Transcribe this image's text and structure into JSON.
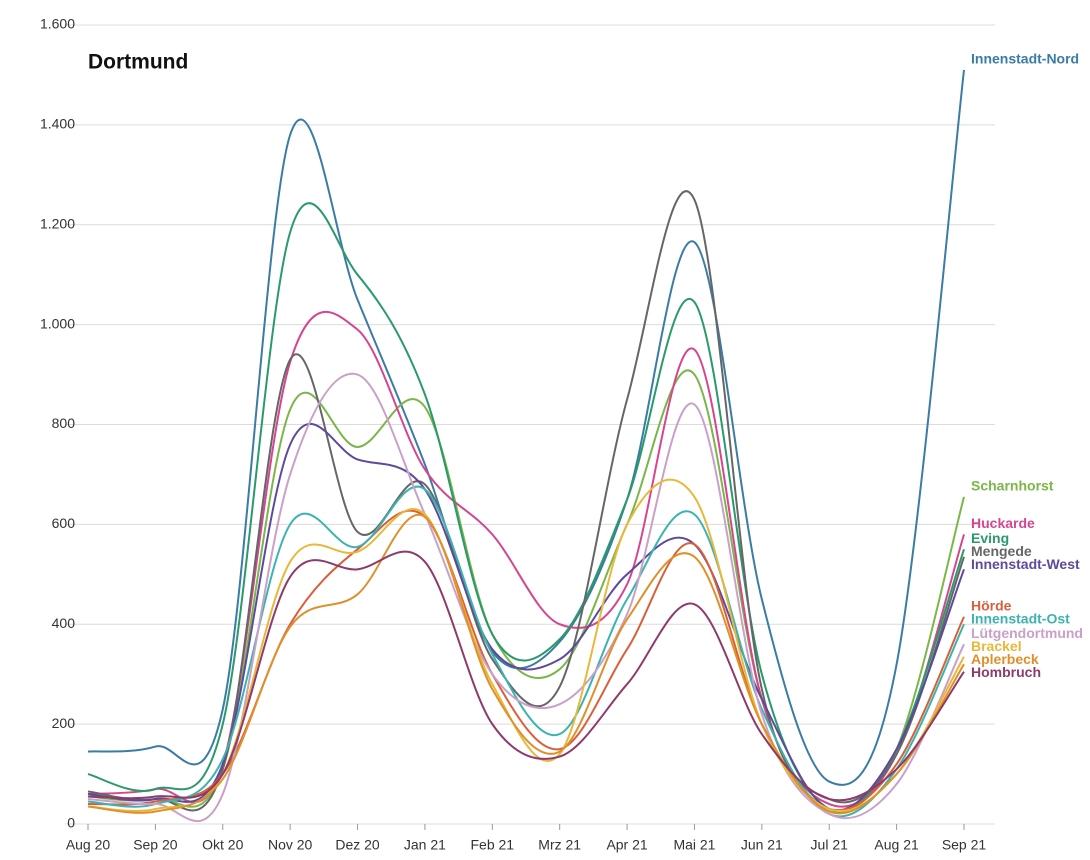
{
  "chart_data": {
    "type": "line",
    "title": "Dortmund",
    "categories": [
      "Aug 20",
      "Sep 20",
      "Okt 20",
      "Nov 20",
      "Dez 20",
      "Jan 21",
      "Feb 21",
      "Mrz 21",
      "Apr 21",
      "Mai 21",
      "Jun 21",
      "Jul 21",
      "Aug 21",
      "Sep 21"
    ],
    "ylim": [
      0,
      1600
    ],
    "yticks": [
      0,
      200,
      400,
      600,
      800,
      {
        "value": 1000,
        "label": "1.000"
      },
      {
        "value": 1200,
        "label": "1.200"
      },
      {
        "value": 1400,
        "label": "1.400"
      },
      {
        "value": 1600,
        "label": "1.600"
      }
    ],
    "grid": true,
    "series": [
      {
        "name": "Innenstadt-Nord",
        "color": "#3a7ca5",
        "values": [
          145,
          155,
          230,
          1380,
          1050,
          720,
          345,
          365,
          650,
          1165,
          450,
          85,
          320,
          1510
        ]
      },
      {
        "name": "Scharnhorst",
        "color": "#7ab648",
        "values": [
          55,
          50,
          110,
          830,
          755,
          835,
          380,
          310,
          600,
          900,
          250,
          30,
          150,
          655
        ]
      },
      {
        "name": "Huckarde",
        "color": "#d6458f",
        "values": [
          60,
          70,
          120,
          925,
          990,
          710,
          580,
          400,
          480,
          950,
          250,
          40,
          140,
          580
        ]
      },
      {
        "name": "Eving",
        "color": "#2a9a6b",
        "values": [
          100,
          70,
          200,
          1185,
          1100,
          860,
          380,
          370,
          650,
          1045,
          300,
          30,
          150,
          550
        ]
      },
      {
        "name": "Mengede",
        "color": "#666666",
        "values": [
          65,
          50,
          110,
          930,
          585,
          680,
          330,
          275,
          850,
          1250,
          270,
          50,
          140,
          535
        ]
      },
      {
        "name": "Innenstadt-West",
        "color": "#5e4a9c",
        "values": [
          60,
          50,
          120,
          760,
          730,
          670,
          350,
          330,
          500,
          560,
          250,
          30,
          150,
          510
        ]
      },
      {
        "name": "Hörde",
        "color": "#d95f3b",
        "values": [
          40,
          45,
          100,
          400,
          550,
          615,
          300,
          150,
          350,
          560,
          200,
          30,
          120,
          415
        ]
      },
      {
        "name": "Innenstadt-Ost",
        "color": "#3bb3b0",
        "values": [
          45,
          40,
          130,
          600,
          555,
          670,
          340,
          180,
          450,
          620,
          230,
          20,
          110,
          400
        ]
      },
      {
        "name": "Lütgendortmund",
        "color": "#c9a0c8",
        "values": [
          50,
          40,
          60,
          700,
          900,
          620,
          300,
          240,
          420,
          840,
          220,
          20,
          80,
          360
        ]
      },
      {
        "name": "Brackel",
        "color": "#e8b83a",
        "values": [
          35,
          30,
          100,
          525,
          545,
          620,
          280,
          140,
          600,
          655,
          200,
          30,
          100,
          335
        ]
      },
      {
        "name": "Aplerbeck",
        "color": "#e0902a",
        "values": [
          35,
          25,
          90,
          395,
          460,
          615,
          270,
          145,
          410,
          535,
          200,
          25,
          100,
          320
        ]
      },
      {
        "name": "Hombruch",
        "color": "#8e3a6a",
        "values": [
          55,
          55,
          100,
          495,
          510,
          525,
          200,
          135,
          280,
          440,
          180,
          50,
          110,
          305
        ]
      }
    ]
  }
}
